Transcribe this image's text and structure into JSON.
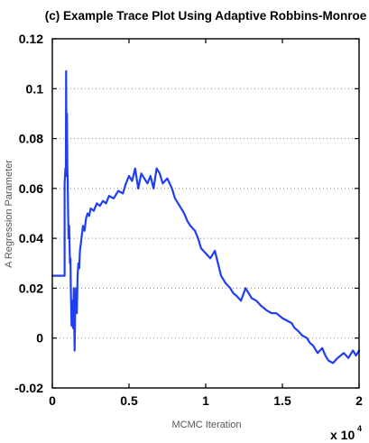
{
  "chart_data": {
    "type": "line",
    "title": "(c) Example Trace Plot Using Adaptive Robbins-Monroe",
    "xlabel": "MCMC Iteration",
    "ylabel": "A Regression Parameter",
    "x_exponent_base": "x 10",
    "x_exponent_power": "4",
    "xlim": [
      0,
      2
    ],
    "ylim": [
      -0.02,
      0.12
    ],
    "x_ticks": [
      0,
      0.5,
      1,
      1.5,
      2
    ],
    "x_tick_labels": [
      "0",
      "0.5",
      "1",
      "1.5",
      "2"
    ],
    "y_ticks": [
      -0.02,
      0,
      0.02,
      0.04,
      0.06,
      0.08,
      0.1,
      0.12
    ],
    "y_tick_labels": [
      "-0.02",
      "0",
      "0.02",
      "0.04",
      "0.06",
      "0.08",
      "0.1",
      "0.12"
    ],
    "grid": "horizontal dotted",
    "series_color": "#1f3ff0",
    "series": [
      {
        "x": [
          0,
          0.08,
          0.08,
          0.085,
          0.088,
          0.09,
          0.093,
          0.095,
          0.098,
          0.1,
          0.103,
          0.106,
          0.11,
          0.115,
          0.118,
          0.12,
          0.125,
          0.13,
          0.135,
          0.14,
          0.145,
          0.15,
          0.155,
          0.16,
          0.165,
          0.17,
          0.175,
          0.18,
          0.19,
          0.2,
          0.21,
          0.22,
          0.23,
          0.24,
          0.25,
          0.27,
          0.29,
          0.31,
          0.33,
          0.35,
          0.37,
          0.4,
          0.43,
          0.46,
          0.48,
          0.5,
          0.52,
          0.54,
          0.56,
          0.58,
          0.6,
          0.62,
          0.64,
          0.66,
          0.68,
          0.7,
          0.72,
          0.75,
          0.78,
          0.8,
          0.83,
          0.86,
          0.88,
          0.9,
          0.93,
          0.95,
          0.97,
          1.0,
          1.03,
          1.06,
          1.08,
          1.1,
          1.13,
          1.16,
          1.18,
          1.2,
          1.23,
          1.26,
          1.28,
          1.3,
          1.33,
          1.36,
          1.38,
          1.4,
          1.43,
          1.46,
          1.48,
          1.5,
          1.53,
          1.56,
          1.58,
          1.6,
          1.63,
          1.66,
          1.68,
          1.7,
          1.73,
          1.76,
          1.78,
          1.8,
          1.83,
          1.86,
          1.88,
          1.9,
          1.93,
          1.96,
          1.98,
          2.0
        ],
        "y": [
          0.025,
          0.025,
          0.062,
          0.068,
          0.065,
          0.107,
          0.065,
          0.09,
          0.068,
          0.065,
          0.05,
          0.04,
          0.045,
          0.03,
          0.032,
          0.022,
          0.005,
          0.015,
          0.004,
          0.02,
          -0.005,
          0.015,
          0.02,
          0.01,
          0.025,
          0.03,
          0.028,
          0.035,
          0.04,
          0.045,
          0.043,
          0.048,
          0.05,
          0.049,
          0.052,
          0.051,
          0.054,
          0.053,
          0.055,
          0.054,
          0.057,
          0.056,
          0.059,
          0.058,
          0.062,
          0.065,
          0.063,
          0.068,
          0.06,
          0.066,
          0.064,
          0.062,
          0.065,
          0.06,
          0.068,
          0.066,
          0.062,
          0.064,
          0.06,
          0.056,
          0.053,
          0.05,
          0.047,
          0.045,
          0.043,
          0.04,
          0.036,
          0.034,
          0.032,
          0.035,
          0.03,
          0.025,
          0.022,
          0.02,
          0.018,
          0.017,
          0.015,
          0.02,
          0.018,
          0.016,
          0.015,
          0.013,
          0.012,
          0.011,
          0.01,
          0.01,
          0.009,
          0.008,
          0.007,
          0.006,
          0.004,
          0.003,
          0.001,
          0.0,
          -0.002,
          -0.003,
          -0.006,
          -0.004,
          -0.007,
          -0.009,
          -0.01,
          -0.008,
          -0.007,
          -0.006,
          -0.008,
          -0.005,
          -0.007,
          -0.005
        ]
      }
    ]
  }
}
